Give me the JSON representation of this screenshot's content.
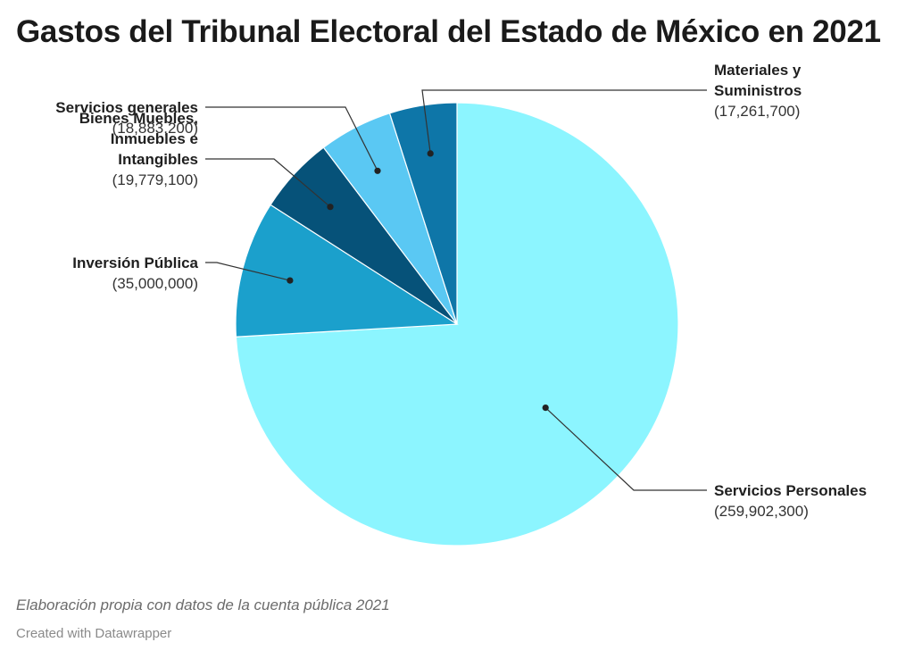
{
  "title": "Gastos del Tribunal Electoral del Estado de México en 2021",
  "chart_data": {
    "type": "pie",
    "slices": [
      {
        "name": "Servicios Personales",
        "label_lines": [
          "Servicios Personales"
        ],
        "value": 259902300,
        "value_label": "(259,902,300)",
        "color": "#8cf5ff"
      },
      {
        "name": "Inversión Pública",
        "label_lines": [
          "Inversión Pública"
        ],
        "value": 35000000,
        "value_label": "(35,000,000)",
        "color": "#1ba0cc"
      },
      {
        "name": "Bienes Muebles, Inmuebles e Intangibles",
        "label_lines": [
          "Bienes Muebles,",
          "Inmuebles e",
          "Intangibles"
        ],
        "value": 19779100,
        "value_label": "(19,779,100)",
        "color": "#065279"
      },
      {
        "name": "Servicios generales",
        "label_lines": [
          "Servicios generales"
        ],
        "value": 18883200,
        "value_label": "(18,883,200)",
        "color": "#5ac8f3"
      },
      {
        "name": "Materiales y Suministros",
        "label_lines": [
          "Materiales y",
          "Suministros"
        ],
        "value": 17261700,
        "value_label": "(17,261,700)",
        "color": "#0e76a8"
      }
    ]
  },
  "footer": {
    "note": "Elaboración propia con datos de la cuenta pública 2021",
    "credit": "Created with Datawrapper"
  }
}
